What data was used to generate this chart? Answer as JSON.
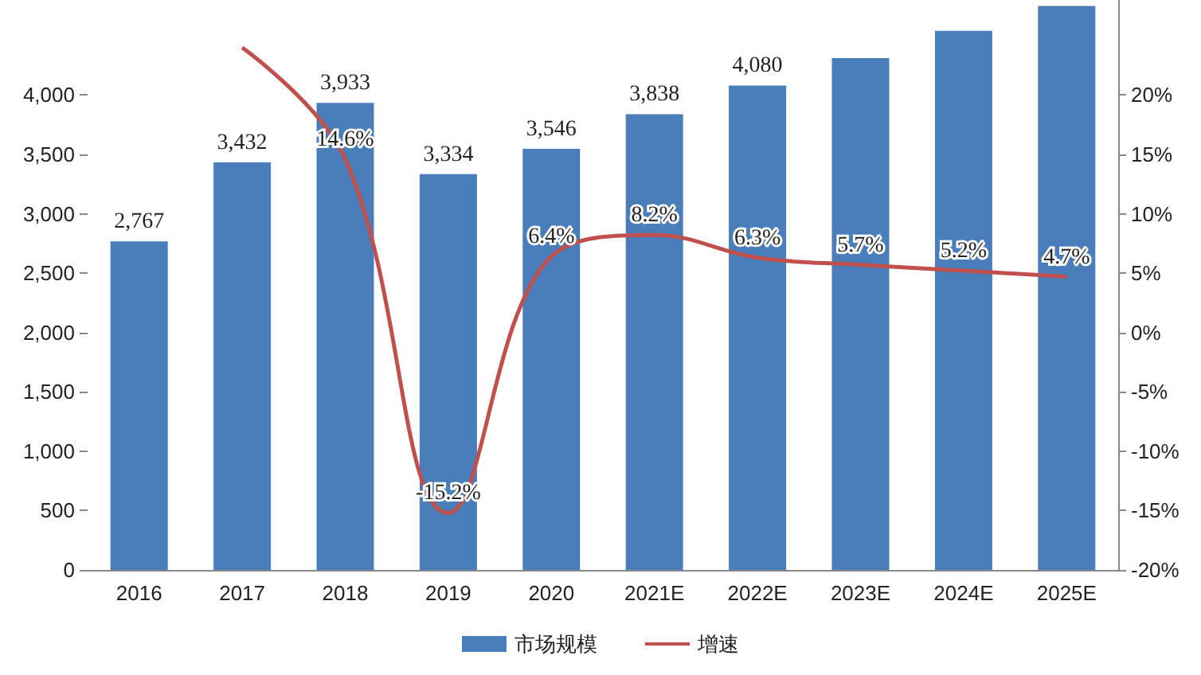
{
  "chart_data": {
    "type": "bar",
    "categories": [
      "2016",
      "2017",
      "2018",
      "2019",
      "2020",
      "2021E",
      "2022E",
      "2023E",
      "2024E",
      "2025E"
    ],
    "series": [
      {
        "name": "市场规模",
        "color": "#4a7ebb",
        "values": [
          2767,
          3432,
          3933,
          3334,
          3546,
          3838,
          4080,
          4310,
          4540,
          4750
        ],
        "value_labels": [
          "2,767",
          "3,432",
          "3,933",
          "3,334",
          "3,546",
          "3,838",
          "4,080",
          null,
          null,
          null
        ]
      },
      {
        "name": "增速",
        "type": "line",
        "axis": "y2",
        "color": "#c0504d",
        "marker": "none",
        "values": [
          null,
          24.0,
          14.6,
          -15.2,
          6.4,
          8.2,
          6.3,
          5.7,
          5.2,
          4.7
        ],
        "value_labels": [
          null,
          null,
          "14.6%",
          "-15.2%",
          "6.4%",
          "8.2%",
          "6.3%",
          "5.7%",
          "5.2%",
          "4.7%"
        ]
      }
    ],
    "ylim": [
      0,
      4800
    ],
    "yticks": [
      0,
      500,
      {
        "value": 1000,
        "label": "1,000"
      },
      {
        "value": 1500,
        "label": "1,500"
      },
      {
        "value": 2000,
        "label": "2,000"
      },
      {
        "value": 2500,
        "label": "2,500"
      },
      {
        "value": 3000,
        "label": "3,000"
      },
      {
        "value": 3500,
        "label": "3,500"
      },
      {
        "value": 4000,
        "label": "4,000"
      }
    ],
    "y2lim": [
      -20,
      28
    ],
    "y2ticks": [
      {
        "value": -20,
        "label": "-20%"
      },
      {
        "value": -15,
        "label": "-15%"
      },
      {
        "value": -10,
        "label": "-10%"
      },
      {
        "value": -5,
        "label": "-5%"
      },
      {
        "value": 0,
        "label": "0%"
      },
      {
        "value": 5,
        "label": "5%"
      },
      {
        "value": 10,
        "label": "10%"
      },
      {
        "value": 15,
        "label": "15%"
      },
      {
        "value": 20,
        "label": "20%"
      }
    ],
    "grid": false,
    "legend": "bottom"
  }
}
